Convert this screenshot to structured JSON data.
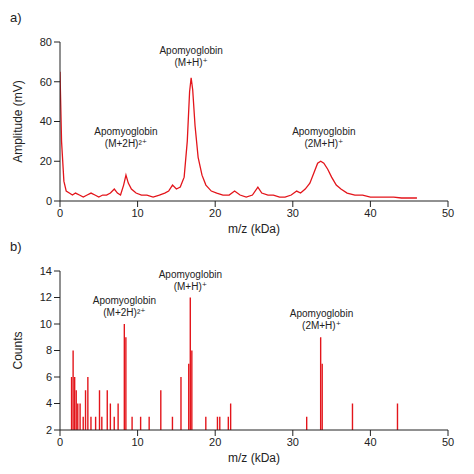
{
  "chart_data": [
    {
      "type": "line",
      "panel": "a)",
      "x_label": "m/z (kDa)",
      "y_label": "Amplitude (mV)",
      "xlim": [
        0,
        50
      ],
      "xticks": [
        0,
        10,
        20,
        30,
        40,
        50
      ],
      "ylim": [
        0,
        80
      ],
      "yticks": [
        0,
        20,
        40,
        60,
        80
      ],
      "grid": false,
      "series": [
        {
          "name": "Amplitude",
          "color": "#e3151b",
          "x": [
            0,
            0.2,
            0.5,
            0.8,
            1.2,
            1.6,
            2.0,
            2.5,
            3.0,
            3.5,
            4.0,
            4.5,
            5.0,
            5.5,
            6.0,
            6.5,
            7.0,
            7.4,
            7.8,
            8.2,
            8.5,
            8.8,
            9.2,
            9.8,
            10.5,
            11.2,
            12.0,
            12.8,
            13.5,
            14.0,
            14.5,
            15.0,
            15.5,
            16.0,
            16.4,
            16.7,
            16.9,
            17.1,
            17.4,
            17.8,
            18.3,
            18.8,
            19.5,
            20.2,
            21.0,
            21.8,
            22.5,
            23.2,
            24.0,
            24.8,
            25.5,
            26.0,
            26.8,
            27.5,
            28.3,
            29.0,
            29.8,
            30.5,
            31.0,
            31.6,
            32.2,
            32.8,
            33.2,
            33.6,
            34.0,
            34.5,
            35.0,
            35.6,
            36.2,
            37.0,
            38.0,
            39.0,
            40.0,
            41.0,
            42.0,
            43.0,
            44.0,
            45.0,
            46.0
          ],
          "values": [
            65,
            30,
            10,
            5,
            4,
            3,
            4,
            3,
            2,
            3,
            4,
            3,
            2,
            3,
            3,
            4,
            6,
            4,
            3,
            8,
            13,
            9,
            6,
            4,
            3,
            3,
            2,
            3,
            4,
            5,
            8,
            6,
            7,
            12,
            30,
            55,
            62,
            56,
            38,
            22,
            13,
            8,
            5,
            4,
            3,
            3,
            5,
            3,
            2,
            3,
            7,
            4,
            3,
            3,
            2,
            2,
            3,
            5,
            4,
            6,
            9,
            15,
            19,
            20,
            19,
            16,
            12,
            8,
            6,
            4,
            3,
            3,
            2,
            2,
            2,
            2,
            1.5,
            1.5,
            1.5
          ]
        }
      ],
      "annotations": [
        {
          "lines": [
            "Apomyoglobin",
            "(M+2H)²⁺"
          ],
          "x": 8.5,
          "y": 25
        },
        {
          "lines": [
            "Apomyoglobin",
            "(M+H)⁺"
          ],
          "x": 16.9,
          "y": 66
        },
        {
          "lines": [
            "Apomyoglobin",
            "(2M+H)⁺"
          ],
          "x": 34,
          "y": 25
        }
      ]
    },
    {
      "type": "bar",
      "panel": "b)",
      "x_label": "m/z (kDa)",
      "y_label": "Counts",
      "xlim": [
        0,
        50
      ],
      "xticks": [
        0,
        10,
        20,
        30,
        40,
        50
      ],
      "ylim": [
        2,
        14
      ],
      "yticks": [
        2,
        4,
        6,
        8,
        10,
        12,
        14
      ],
      "grid": false,
      "series": [
        {
          "name": "Counts",
          "color": "#e3151b",
          "x": [
            1.5,
            1.7,
            1.9,
            2.1,
            2.3,
            2.6,
            3.0,
            3.3,
            3.6,
            4.0,
            4.6,
            5.1,
            5.4,
            6.1,
            6.5,
            7.0,
            7.5,
            8.3,
            8.5,
            9.3,
            10.4,
            11.5,
            13.0,
            14.5,
            15.6,
            16.6,
            16.8,
            17.0,
            18.8,
            20.3,
            20.6,
            21.7,
            22.0,
            31.8,
            33.6,
            33.8,
            37.7,
            43.5
          ],
          "values": [
            6,
            8,
            6,
            5,
            4,
            4,
            3,
            5,
            6,
            3,
            3,
            5,
            3,
            5,
            4,
            3,
            4,
            10,
            9,
            3,
            3,
            3,
            5,
            3,
            6,
            7,
            12,
            8,
            3,
            3,
            3,
            3,
            4,
            3,
            9,
            7,
            4,
            4
          ]
        }
      ],
      "annotations": [
        {
          "lines": [
            "Apomyoglobin",
            "(M+2H)²⁺"
          ],
          "x": 8.3,
          "y": 10.3
        },
        {
          "lines": [
            "Apomyoglobin",
            "(M+H)⁺"
          ],
          "x": 16.8,
          "y": 12.3
        },
        {
          "lines": [
            "Apomyoglobin",
            "(2M+H)⁺"
          ],
          "x": 33.7,
          "y": 9.3
        }
      ]
    }
  ]
}
